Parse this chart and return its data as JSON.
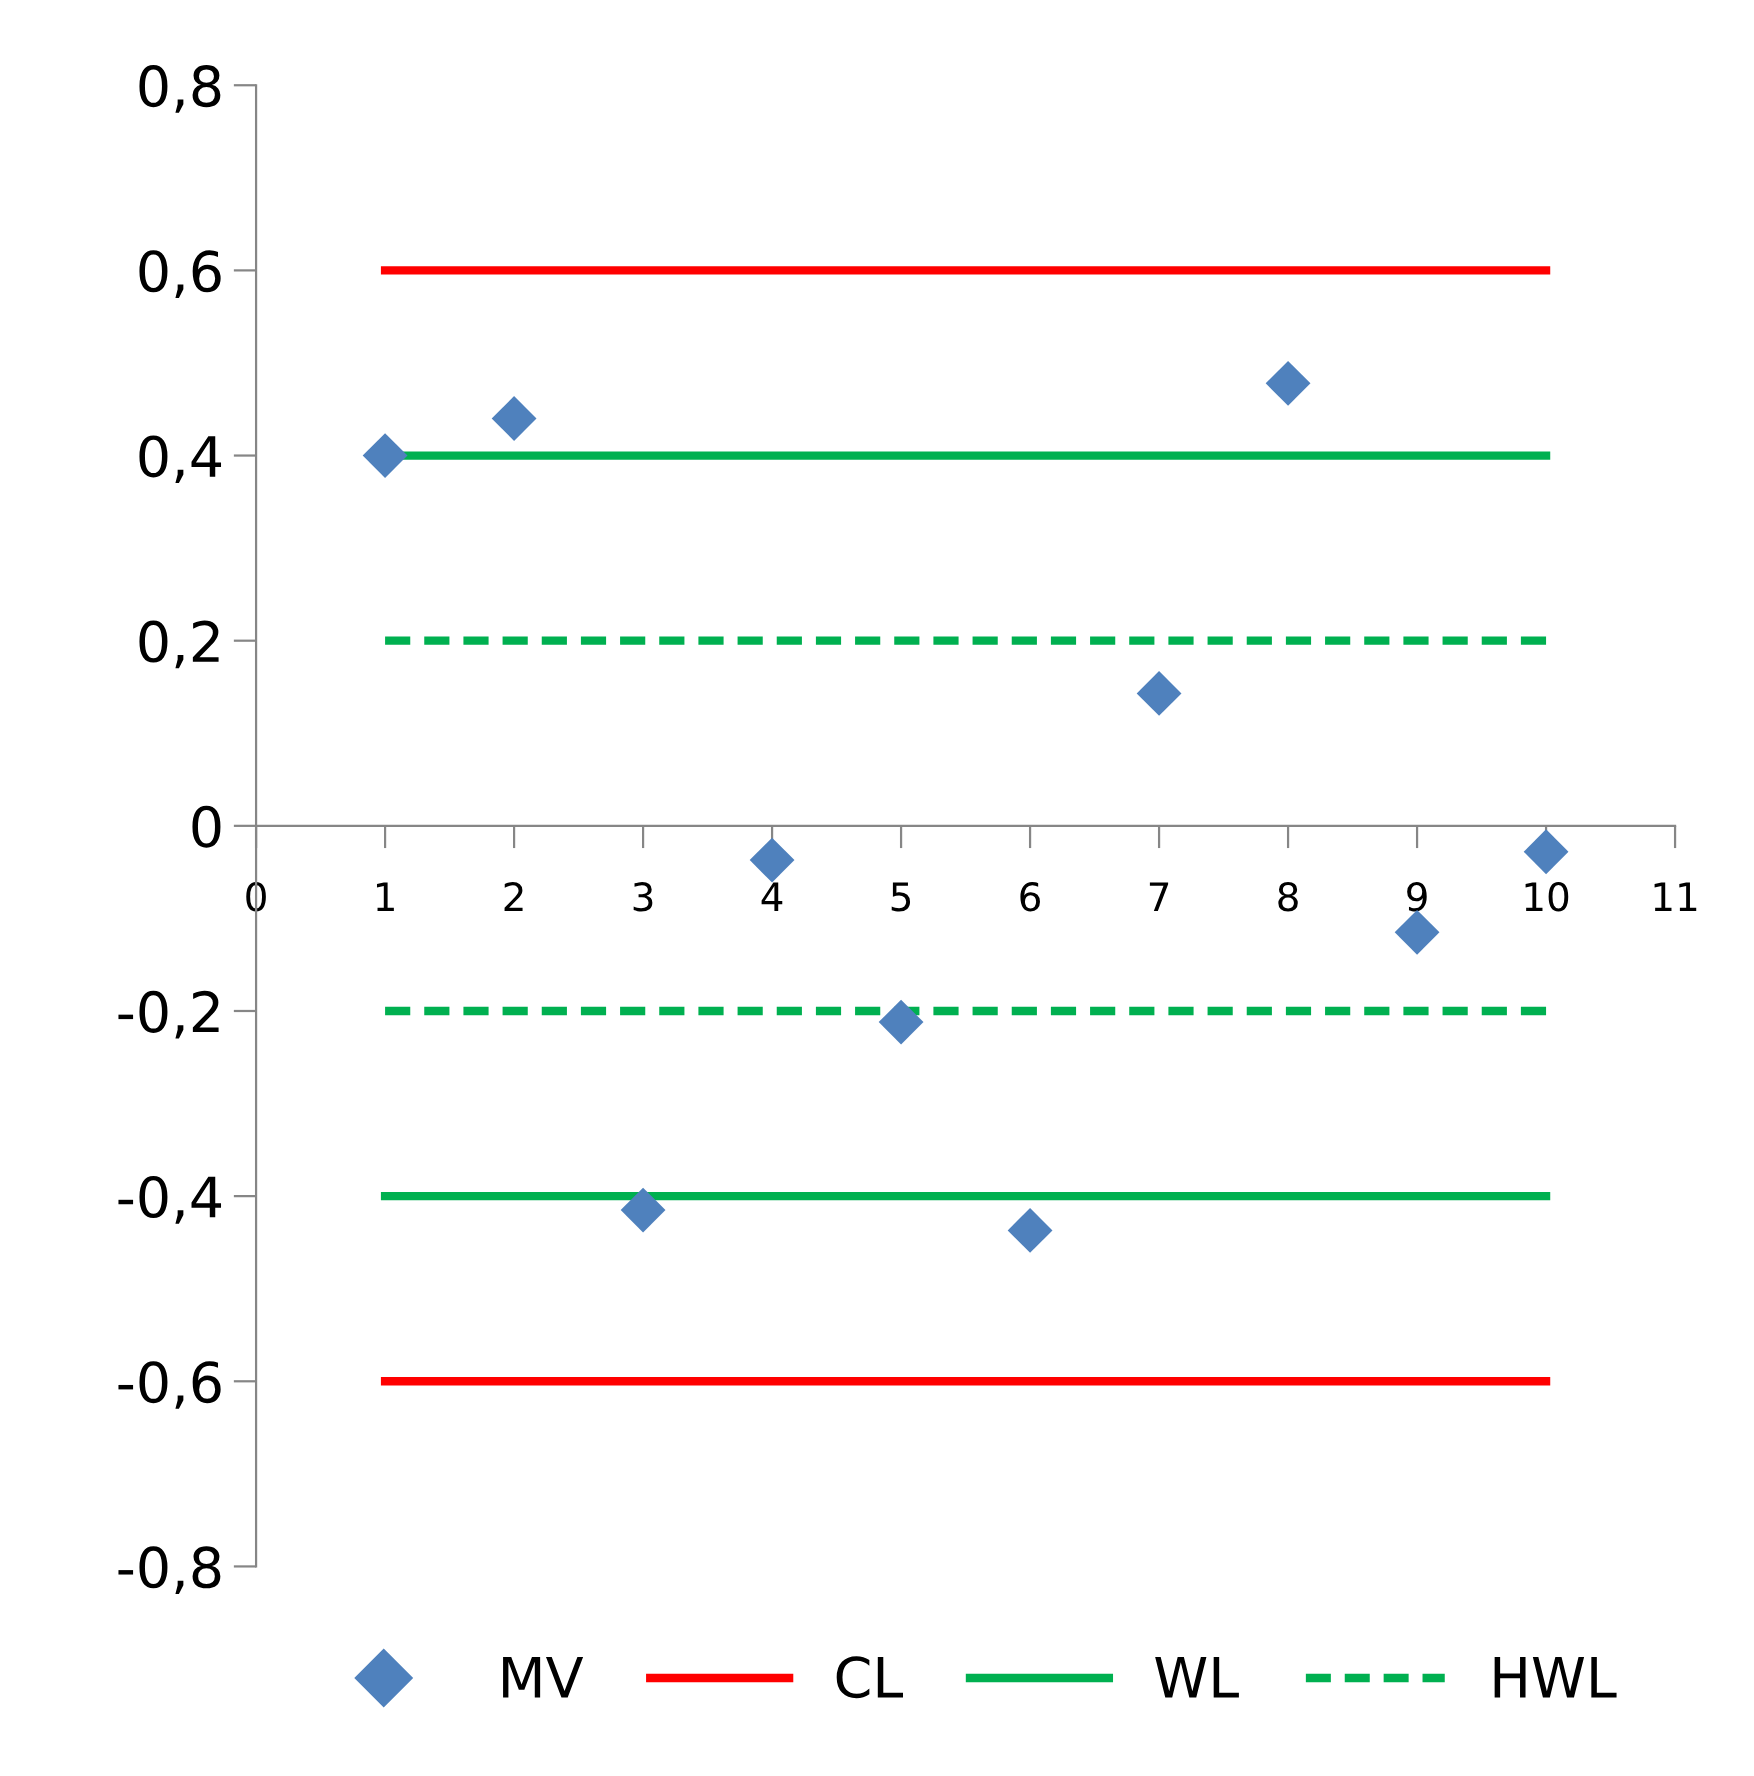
{
  "chart_data": {
    "type": "scatter",
    "x": [
      1,
      2,
      3,
      4,
      5,
      6,
      7,
      8,
      9,
      10
    ],
    "series": [
      {
        "name": "MV",
        "color": "#4f81bd",
        "marker": "diamond",
        "values": [
          0.4,
          0.44,
          -0.415,
          -0.037,
          -0.212,
          -0.437,
          0.143,
          0.478,
          -0.115,
          -0.028
        ]
      },
      {
        "name": "CL",
        "type": "line",
        "color": "#ff0000",
        "line_style": "solid",
        "values": [
          0.6,
          0.6,
          0.6,
          0.6,
          0.6,
          0.6,
          0.6,
          0.6,
          0.6,
          0.6
        ]
      },
      {
        "type": "line",
        "color": "#ff0000",
        "line_style": "solid",
        "values": [
          -0.6,
          -0.6,
          -0.6,
          -0.6,
          -0.6,
          -0.6,
          -0.6,
          -0.6,
          -0.6,
          -0.6
        ]
      },
      {
        "name": "WL",
        "type": "line",
        "color": "#00b050",
        "line_style": "solid",
        "values": [
          0.4,
          0.4,
          0.4,
          0.4,
          0.4,
          0.4,
          0.4,
          0.4,
          0.4,
          0.4
        ]
      },
      {
        "type": "line",
        "color": "#00b050",
        "line_style": "solid",
        "values": [
          -0.4,
          -0.4,
          -0.4,
          -0.4,
          -0.4,
          -0.4,
          -0.4,
          -0.4,
          -0.4,
          -0.4
        ]
      },
      {
        "name": "HWL",
        "type": "line",
        "color": "#00b050",
        "line_style": "dashed",
        "values": [
          0.2,
          0.2,
          0.2,
          0.2,
          0.2,
          0.2,
          0.2,
          0.2,
          0.2,
          0.2
        ]
      },
      {
        "type": "line",
        "color": "#00b050",
        "line_style": "dashed",
        "values": [
          -0.2,
          -0.2,
          -0.2,
          -0.2,
          -0.2,
          -0.2,
          -0.2,
          -0.2,
          -0.2,
          -0.2
        ]
      }
    ],
    "xlim": [
      0,
      11
    ],
    "xticks": [
      0,
      1,
      2,
      3,
      4,
      5,
      6,
      7,
      8,
      9,
      10,
      11
    ],
    "ylim": [
      -0.8,
      0.8
    ],
    "yticks": [
      {
        "value": -0.8,
        "label": "-0,8"
      },
      {
        "value": -0.6,
        "label": "-0,6"
      },
      {
        "value": -0.4,
        "label": "-0,4"
      },
      {
        "value": -0.2,
        "label": "-0,2"
      },
      0,
      {
        "value": 0.2,
        "label": "0,2"
      },
      {
        "value": 0.4,
        "label": "0,4"
      },
      {
        "value": 0.6,
        "label": "0,6"
      },
      {
        "value": 0.8,
        "label": "0,8"
      }
    ],
    "grid": false,
    "legend": "bottom"
  }
}
